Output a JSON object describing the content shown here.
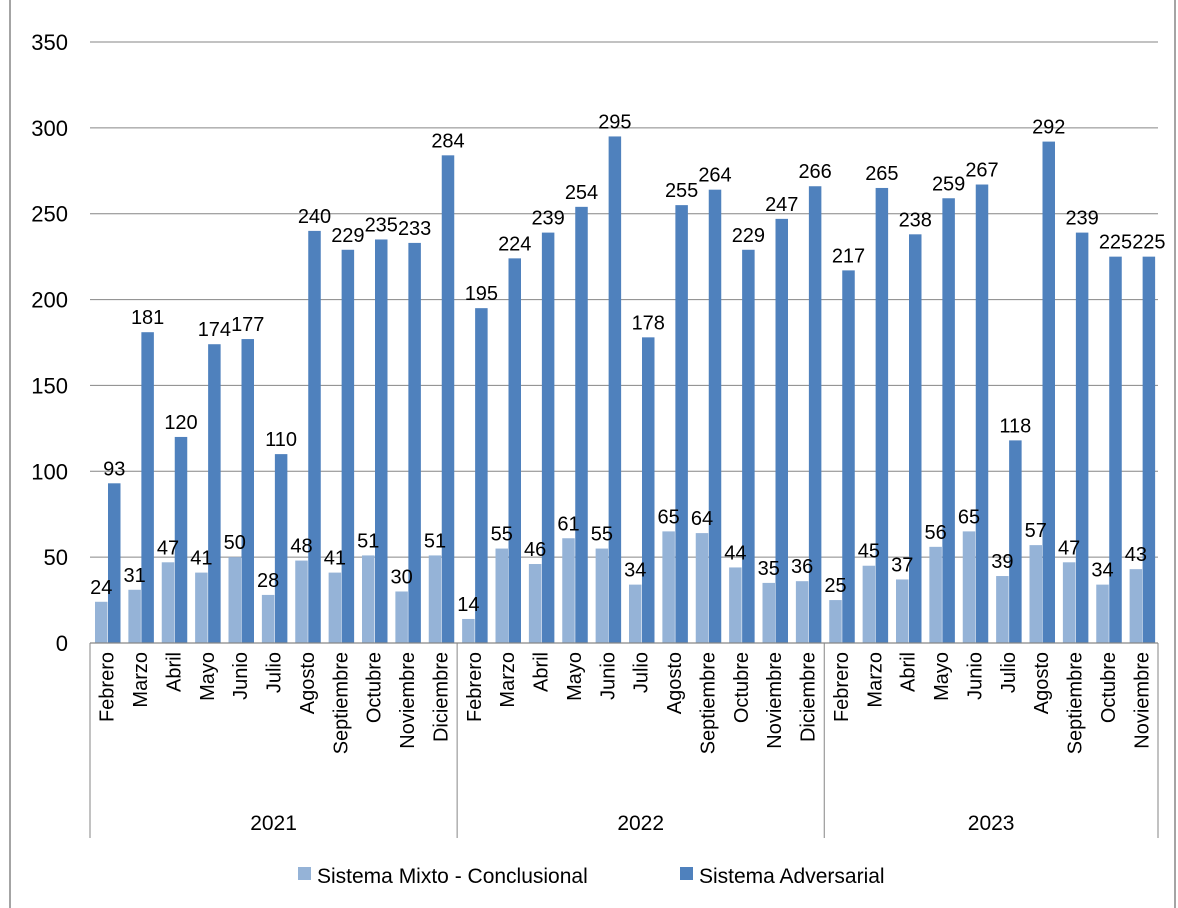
{
  "chart_data": {
    "type": "bar",
    "title": "",
    "ylim": [
      0,
      350
    ],
    "yticks": [
      0,
      50,
      100,
      150,
      200,
      250,
      300,
      350
    ],
    "grid": true,
    "legend_position": "bottom",
    "groups": [
      {
        "label": "2021",
        "months": [
          "Febrero",
          "Marzo",
          "Abril",
          "Mayo",
          "Junio",
          "Julio",
          "Agosto",
          "Septiembre",
          "Octubre",
          "Noviembre",
          "Diciembre"
        ]
      },
      {
        "label": "2022",
        "months": [
          "Febrero",
          "Marzo",
          "Abril",
          "Mayo",
          "Junio",
          "Julio",
          "Agosto",
          "Septiembre",
          "Octubre",
          "Noviembre",
          "Diciembre"
        ]
      },
      {
        "label": "2023",
        "months": [
          "Febrero",
          "Marzo",
          "Abril",
          "Mayo",
          "Junio",
          "Julio",
          "Agosto",
          "Septiembre",
          "Octubre",
          "Noviembre"
        ]
      }
    ],
    "series": [
      {
        "name": "Sistema Mixto - Conclusional",
        "color": "#95b3d7",
        "values": [
          24,
          31,
          47,
          41,
          50,
          28,
          48,
          41,
          51,
          30,
          51,
          14,
          55,
          46,
          61,
          55,
          34,
          65,
          64,
          44,
          35,
          36,
          25,
          45,
          37,
          56,
          65,
          39,
          57,
          47,
          34,
          43
        ]
      },
      {
        "name": "Sistema Adversarial",
        "color": "#4f81bd",
        "values": [
          93,
          181,
          120,
          174,
          177,
          110,
          240,
          229,
          235,
          233,
          284,
          195,
          224,
          239,
          254,
          295,
          178,
          255,
          264,
          229,
          247,
          266,
          217,
          265,
          238,
          259,
          267,
          118,
          292,
          239,
          225,
          225
        ]
      }
    ]
  }
}
